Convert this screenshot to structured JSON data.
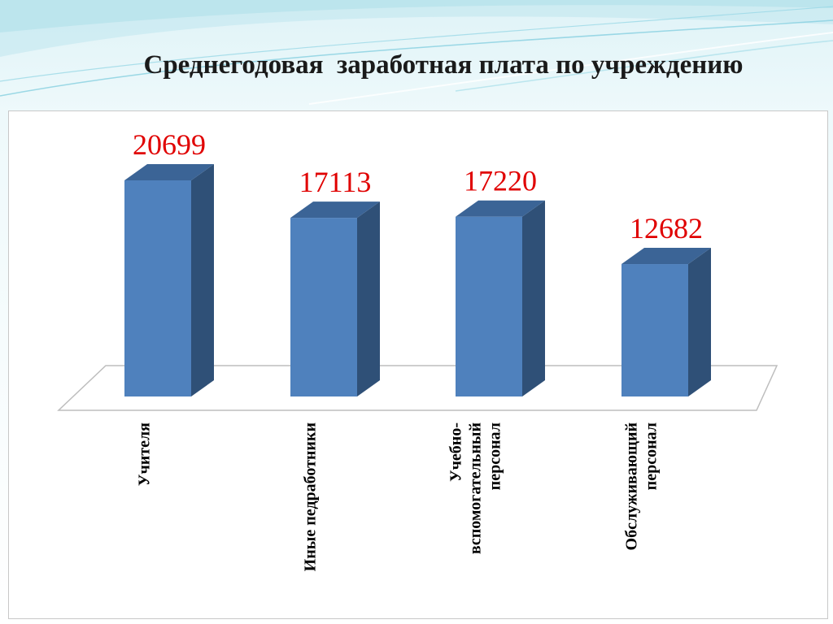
{
  "slide": {
    "title": "Среднегодовая  заработная плата по учреждению"
  },
  "chart_data": {
    "type": "bar",
    "title": "",
    "categories": [
      "Учителя",
      "Иные педработники",
      "Учебно-вспомогательный персонал",
      "Обслуживающий персонал"
    ],
    "category_lines": [
      [
        "Учителя"
      ],
      [
        "Иные педработники"
      ],
      [
        "Учебно-",
        "вспомогательный",
        "персонал"
      ],
      [
        "Обслуживающий",
        "персонал"
      ]
    ],
    "values": [
      20699,
      17113,
      17220,
      12682
    ],
    "data_labels": [
      "20699",
      "17113",
      "17220",
      "12682"
    ],
    "xlabel": "",
    "ylabel": "",
    "ylim": [
      0,
      20699
    ],
    "grid": false,
    "legend": "none",
    "three_d": true,
    "colors": {
      "bar_front": "#4f81bd",
      "bar_side": "#2f5077",
      "bar_top": "#3b6496",
      "value_label": "#e00000"
    }
  }
}
